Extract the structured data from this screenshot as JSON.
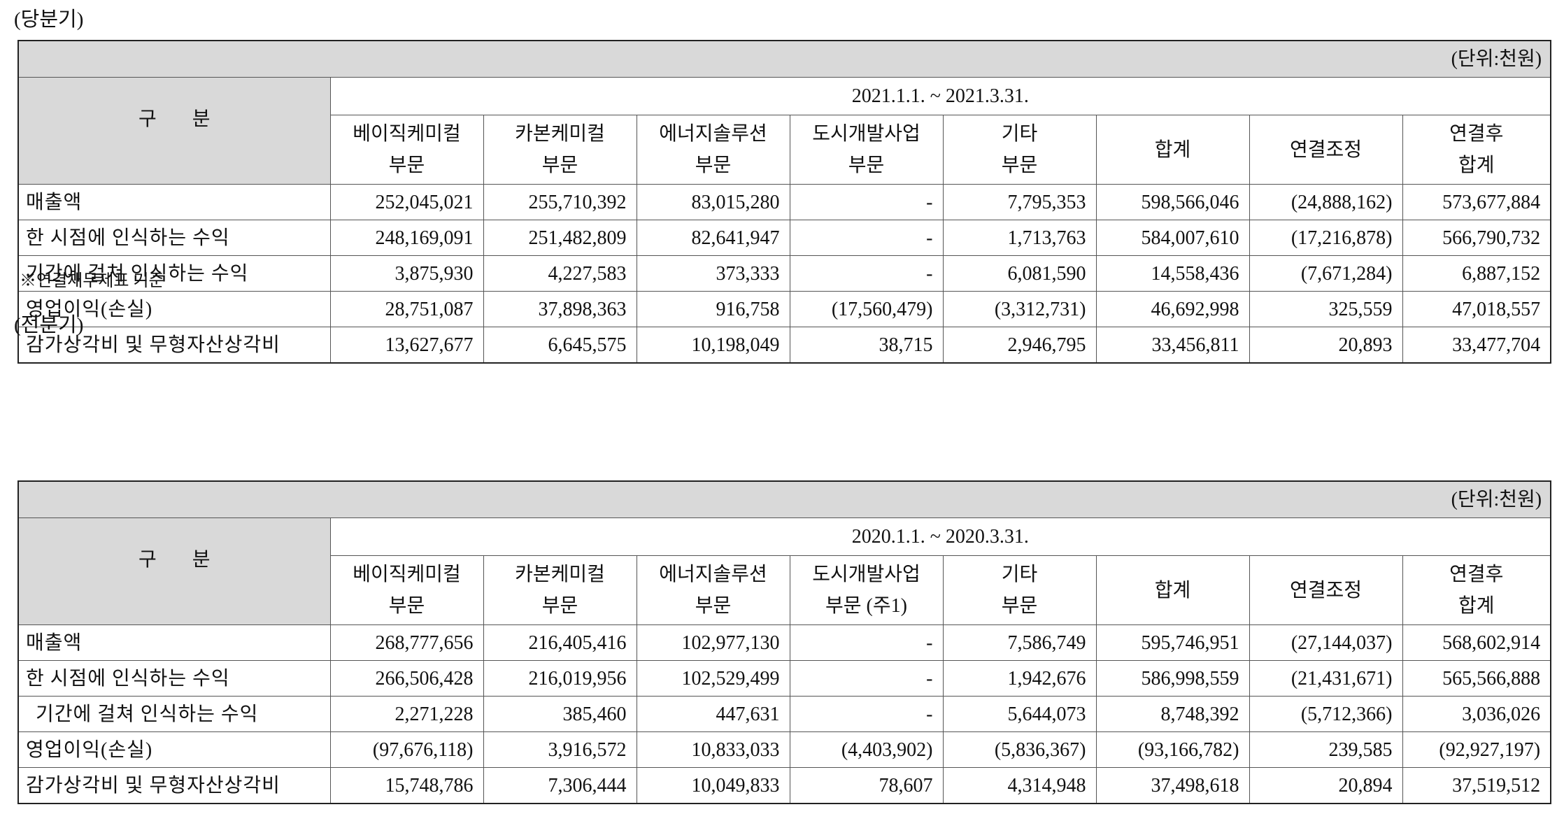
{
  "current": {
    "title": "(당분기)",
    "unit": "(단위:천원)",
    "period": "2021.1.1. ~ 2021.3.31.",
    "gubun": "구 분",
    "headers": [
      [
        "베이직케미컬",
        "부문"
      ],
      [
        "카본케미컬",
        "부문"
      ],
      [
        "에너지솔루션",
        "부문"
      ],
      [
        "도시개발사업",
        "부문"
      ],
      [
        "기타",
        "부문"
      ],
      [
        "합계"
      ],
      [
        "연결조정"
      ],
      [
        "연결후",
        "합계"
      ]
    ],
    "rows": [
      {
        "label": "매출액",
        "values": [
          "252,045,021",
          "255,710,392",
          "83,015,280",
          "-",
          "7,795,353",
          "598,566,046",
          "(24,888,162)",
          "573,677,884"
        ]
      },
      {
        "label": "한 시점에 인식하는 수익",
        "values": [
          "248,169,091",
          "251,482,809",
          "82,641,947",
          "-",
          "1,713,763",
          "584,007,610",
          "(17,216,878)",
          "566,790,732"
        ]
      },
      {
        "label": "기간에 걸쳐 인식하는 수익",
        "values": [
          "3,875,930",
          "4,227,583",
          "373,333",
          "-",
          "6,081,590",
          "14,558,436",
          "(7,671,284)",
          "6,887,152"
        ]
      },
      {
        "label": "영업이익(손실)",
        "values": [
          "28,751,087",
          "37,898,363",
          "916,758",
          "(17,560,479)",
          "(3,312,731)",
          "46,692,998",
          "325,559",
          "47,018,557"
        ]
      },
      {
        "label": "감가상각비 및 무형자산상각비",
        "values": [
          "13,627,677",
          "6,645,575",
          "10,198,049",
          "38,715",
          "2,946,795",
          "33,456,811",
          "20,893",
          "33,477,704"
        ]
      }
    ],
    "note": "※연결재무제표 기준"
  },
  "previous": {
    "title": "(전분기)",
    "unit": "(단위:천원)",
    "period": "2020.1.1. ~ 2020.3.31.",
    "gubun": "구 분",
    "headers": [
      [
        "베이직케미컬",
        "부문"
      ],
      [
        "카본케미컬",
        "부문"
      ],
      [
        "에너지솔루션",
        "부문"
      ],
      [
        "도시개발사업",
        "부문 (주1)"
      ],
      [
        "기타",
        "부문"
      ],
      [
        "합계"
      ],
      [
        "연결조정"
      ],
      [
        "연결후",
        "합계"
      ]
    ],
    "rows": [
      {
        "label": "매출액",
        "values": [
          "268,777,656",
          "216,405,416",
          "102,977,130",
          "-",
          "7,586,749",
          "595,746,951",
          "(27,144,037)",
          "568,602,914"
        ]
      },
      {
        "label": "한 시점에 인식하는 수익",
        "values": [
          "266,506,428",
          "216,019,956",
          "102,529,499",
          "-",
          "1,942,676",
          "586,998,559",
          "(21,431,671)",
          "565,566,888"
        ]
      },
      {
        "label": "기간에 걸쳐 인식하는 수익",
        "values": [
          "2,271,228",
          "385,460",
          "447,631",
          "-",
          "5,644,073",
          "8,748,392",
          "(5,712,366)",
          "3,036,026"
        ]
      },
      {
        "label": "영업이익(손실)",
        "values": [
          "(97,676,118)",
          "3,916,572",
          "10,833,033",
          "(4,403,902)",
          "(5,836,367)",
          "(93,166,782)",
          "239,585",
          "(92,927,197)"
        ]
      },
      {
        "label": "감가상각비 및 무형자산상각비",
        "values": [
          "15,748,786",
          "7,306,444",
          "10,049,833",
          "78,607",
          "4,314,948",
          "37,498,618",
          "20,894",
          "37,519,512"
        ]
      }
    ]
  }
}
